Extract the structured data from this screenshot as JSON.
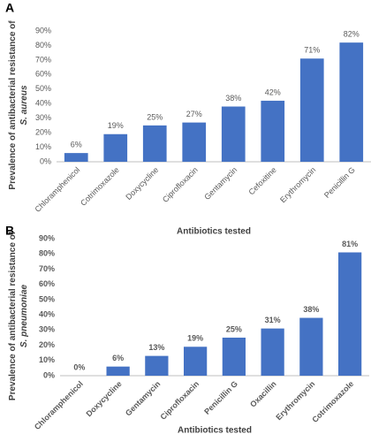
{
  "chart_data": [
    {
      "type": "bar",
      "panel": "A",
      "y_label": [
        "Prevalence of antibacterial resistance of",
        "S. aureus"
      ],
      "x_label": "Antibiotics tested",
      "categories": [
        "Chloramphenicol",
        "Cotrimoxazole",
        "Doxycycline",
        "Ciprofloxacin",
        "Gentamycin",
        "Cefoxitine",
        "Erythromycin",
        "Penicillin G"
      ],
      "values": [
        6,
        19,
        25,
        27,
        38,
        42,
        71,
        82
      ],
      "value_labels": [
        "6%",
        "19%",
        "25%",
        "27%",
        "38%",
        "42%",
        "71%",
        "82%"
      ],
      "color": "#4472c4",
      "bold": false,
      "ylim": [
        0,
        90
      ],
      "yticks": [
        {
          "value": 0,
          "label": "0%"
        },
        {
          "value": 10,
          "label": "10%"
        },
        {
          "value": 20,
          "label": "20%"
        },
        {
          "value": 30,
          "label": "30%"
        },
        {
          "value": 40,
          "label": "40%"
        },
        {
          "value": 50,
          "label": "50%"
        },
        {
          "value": 60,
          "label": "60%"
        },
        {
          "value": 70,
          "label": "70%"
        },
        {
          "value": 80,
          "label": "80%"
        },
        {
          "value": 90,
          "label": "90%"
        }
      ]
    },
    {
      "type": "bar",
      "panel": "B",
      "y_label": [
        "Prevalence of antibacterial resistance of",
        "S. pneumoniae"
      ],
      "x_label": "Antibiotics tested",
      "categories": [
        "Chloramphenicol",
        "Doxycycline",
        "Gentamycin",
        "Ciprofloxacin",
        "Penicillin G",
        "Oxacillin",
        "Erythromycin",
        "Cotrimoxazole"
      ],
      "values": [
        0,
        6,
        13,
        19,
        25,
        31,
        38,
        81
      ],
      "value_labels": [
        "0%",
        "6%",
        "13%",
        "19%",
        "25%",
        "31%",
        "38%",
        "81%"
      ],
      "color": "#4472c4",
      "bold": true,
      "ylim": [
        0,
        90
      ],
      "yticks": [
        {
          "value": 0,
          "label": "0%"
        },
        {
          "value": 10,
          "label": "10%"
        },
        {
          "value": 20,
          "label": "20%"
        },
        {
          "value": 30,
          "label": "30%"
        },
        {
          "value": 40,
          "label": "40%"
        },
        {
          "value": 50,
          "label": "50%"
        },
        {
          "value": 60,
          "label": "60%"
        },
        {
          "value": 70,
          "label": "70%"
        },
        {
          "value": 80,
          "label": "80%"
        },
        {
          "value": 90,
          "label": "90%"
        }
      ]
    }
  ]
}
